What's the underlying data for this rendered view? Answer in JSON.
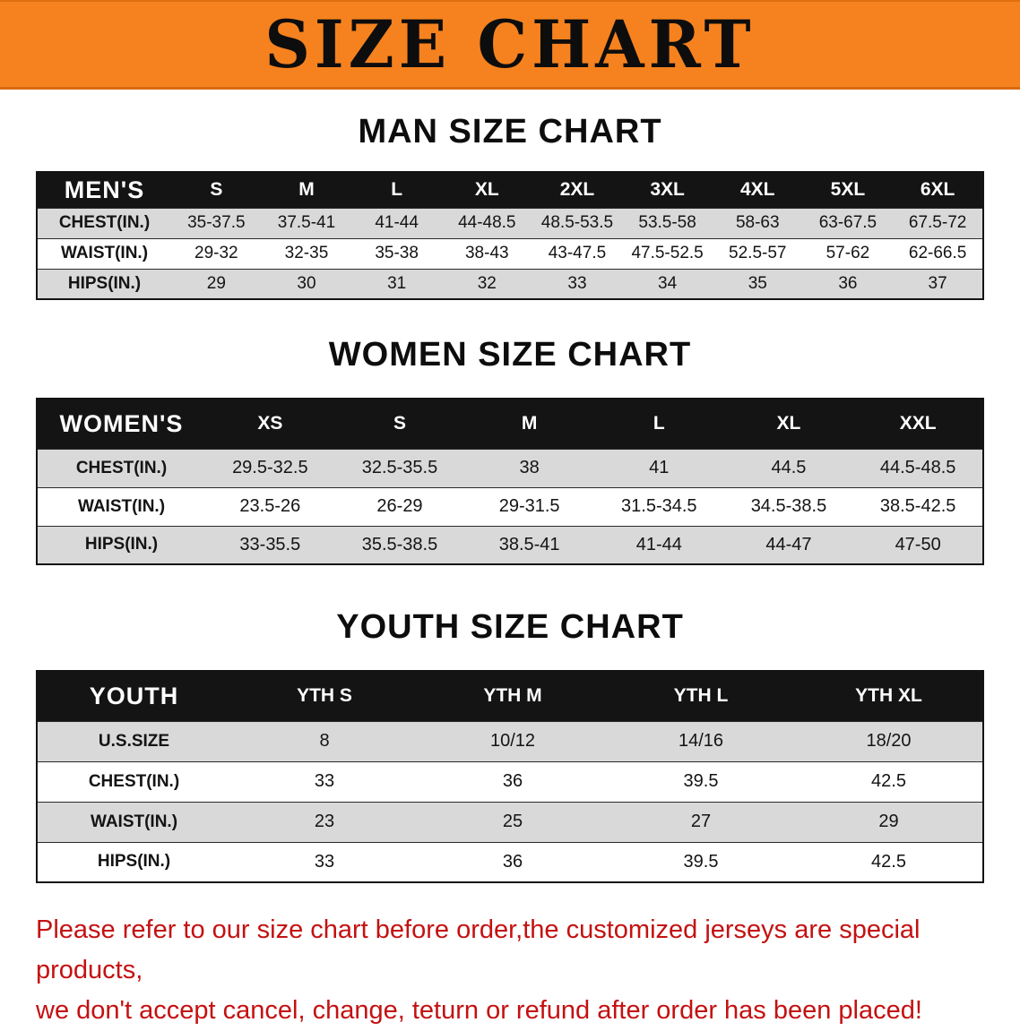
{
  "banner": {
    "title": "SIZE CHART",
    "bg_color": "#f5821f",
    "text_color": "#0d0d0d"
  },
  "sections": [
    {
      "heading": "MAN SIZE CHART",
      "header": [
        "MEN'S",
        "S",
        "M",
        "L",
        "XL",
        "2XL",
        "3XL",
        "4XL",
        "5XL",
        "6XL"
      ],
      "rows": [
        [
          "CHEST(IN.)",
          "35-37.5",
          "37.5-41",
          "41-44",
          "44-48.5",
          "48.5-53.5",
          "53.5-58",
          "58-63",
          "63-67.5",
          "67.5-72"
        ],
        [
          "WAIST(IN.)",
          "29-32",
          "32-35",
          "35-38",
          "38-43",
          "43-47.5",
          "47.5-52.5",
          "52.5-57",
          "57-62",
          "62-66.5"
        ],
        [
          "HIPS(IN.)",
          "29",
          "30",
          "31",
          "32",
          "33",
          "34",
          "35",
          "36",
          "37"
        ]
      ]
    },
    {
      "heading": "WOMEN SIZE CHART",
      "header": [
        "WOMEN'S",
        "XS",
        "S",
        "M",
        "L",
        "XL",
        "XXL"
      ],
      "rows": [
        [
          "CHEST(IN.)",
          "29.5-32.5",
          "32.5-35.5",
          "38",
          "41",
          "44.5",
          "44.5-48.5"
        ],
        [
          "WAIST(IN.)",
          "23.5-26",
          "26-29",
          "29-31.5",
          "31.5-34.5",
          "34.5-38.5",
          "38.5-42.5"
        ],
        [
          "HIPS(IN.)",
          "33-35.5",
          "35.5-38.5",
          "38.5-41",
          "41-44",
          "44-47",
          "47-50"
        ]
      ]
    },
    {
      "heading": "YOUTH SIZE CHART",
      "header": [
        "YOUTH",
        "YTH S",
        "YTH M",
        "YTH L",
        "YTH XL"
      ],
      "rows": [
        [
          "U.S.SIZE",
          "8",
          "10/12",
          "14/16",
          "18/20"
        ],
        [
          "CHEST(IN.)",
          "33",
          "36",
          "39.5",
          "42.5"
        ],
        [
          "WAIST(IN.)",
          "23",
          "25",
          "27",
          "29"
        ],
        [
          "HIPS(IN.)",
          "33",
          "36",
          "39.5",
          "42.5"
        ]
      ]
    }
  ],
  "footer": {
    "color": "#c41111",
    "lines": [
      "Please refer to our size chart before order,the customized jerseys are special products,",
      "we don't accept cancel, change, teturn or refund after order has been placed!"
    ]
  }
}
